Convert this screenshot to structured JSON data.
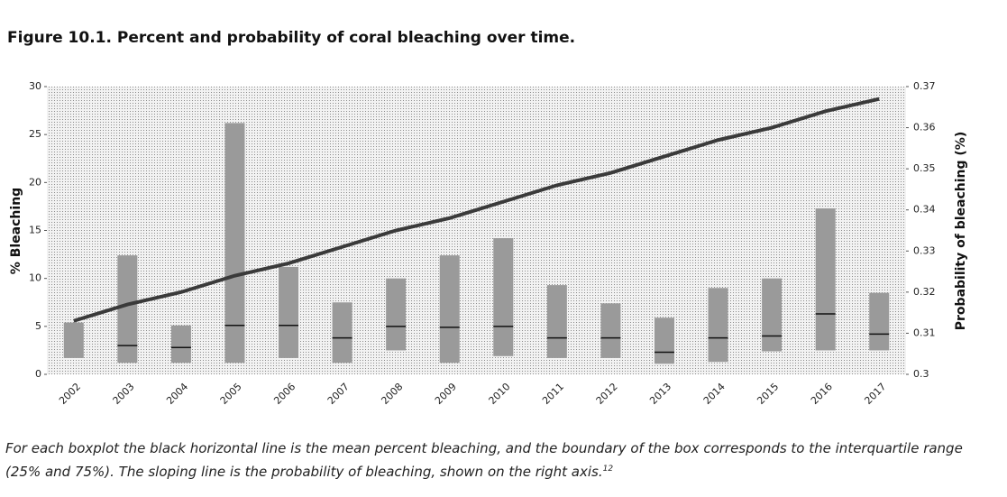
{
  "chart_data": {
    "type": "boxplot",
    "title": "Figure 10.1. Percent and probability of coral bleaching over time.",
    "y_label": "% Bleaching",
    "y2_label": "Probability of bleaching (%)",
    "caption": "For each boxplot the black horizontal line is the mean percent bleaching, and the boundary of the box corresponds to the interquartile range (25% and 75%). The sloping line is the probability of bleaching, shown on the right axis.",
    "footnote": "12",
    "categories": [
      "2002",
      "2003",
      "2004",
      "2005",
      "2006",
      "2007",
      "2008",
      "2009",
      "2010",
      "2011",
      "2012",
      "2013",
      "2014",
      "2015",
      "2016",
      "2017"
    ],
    "boxes": {
      "q1": [
        1.7,
        1.2,
        1.2,
        1.2,
        1.7,
        1.2,
        2.5,
        1.2,
        1.9,
        1.7,
        1.7,
        1.1,
        1.3,
        2.4,
        2.5,
        2.5
      ],
      "q3": [
        5.4,
        12.4,
        5.1,
        26.2,
        11.2,
        7.5,
        10,
        12.4,
        14.2,
        9.3,
        7.4,
        5.9,
        9.0,
        10,
        17.3,
        8.5
      ],
      "mean": [
        null,
        3.0,
        2.8,
        5.1,
        5.1,
        3.8,
        5.0,
        4.9,
        5.0,
        3.8,
        3.8,
        2.3,
        3.8,
        4.0,
        6.3,
        4.2
      ],
      "box_color": "#9a9a9a",
      "mean_color": "#111111"
    },
    "line": {
      "axis": "y2",
      "color": "#3a3a3a",
      "values": [
        0.313,
        0.317,
        0.32,
        0.324,
        0.327,
        0.331,
        0.335,
        0.338,
        0.342,
        0.346,
        0.349,
        0.353,
        0.357,
        0.36,
        0.364,
        0.367
      ]
    },
    "ylim": [
      0,
      30
    ],
    "yticks": [
      0,
      5,
      10,
      15,
      20,
      25,
      30
    ],
    "y2lim": [
      0.3,
      0.37
    ],
    "y2ticks": [
      0.3,
      0.31,
      0.32,
      0.33,
      0.34,
      0.35,
      0.36,
      0.37
    ]
  }
}
